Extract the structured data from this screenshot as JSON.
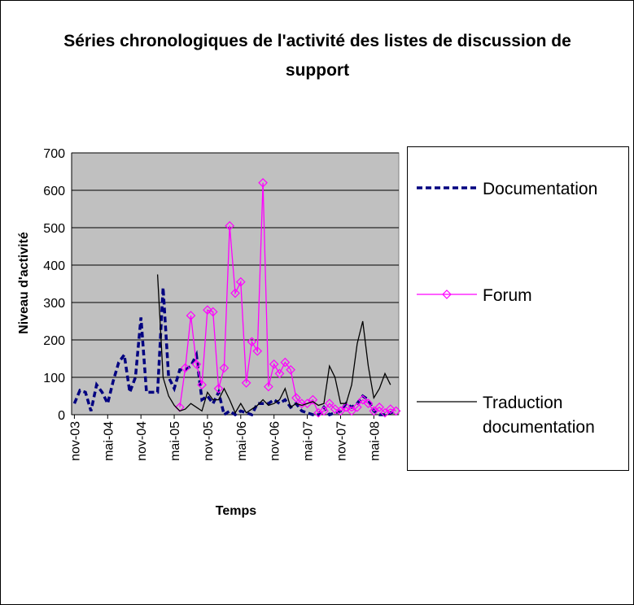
{
  "chart_data": {
    "type": "line",
    "title": "Séries chronologiques de l'activité des listes de discussion de support",
    "x_label": "Temps",
    "y_label": "Niveau d'activité",
    "categories": [
      "nov-03",
      null,
      null,
      null,
      null,
      null,
      "mai-04",
      null,
      null,
      null,
      null,
      null,
      "nov-04",
      null,
      null,
      null,
      null,
      null,
      "mai-05",
      null,
      null,
      null,
      null,
      null,
      "nov-05",
      null,
      null,
      null,
      null,
      null,
      "mai-06",
      null,
      null,
      null,
      null,
      null,
      "nov-06",
      null,
      null,
      null,
      null,
      null,
      "mai-07",
      null,
      null,
      null,
      null,
      null,
      "nov-07",
      null,
      null,
      null,
      null,
      null,
      "mai-08",
      null,
      null,
      null,
      null
    ],
    "series": [
      {
        "name": "Documentation",
        "color": "#000080",
        "dash": true,
        "values": [
          30,
          65,
          60,
          10,
          80,
          60,
          30,
          90,
          140,
          160,
          60,
          100,
          260,
          60,
          60,
          60,
          340,
          100,
          70,
          120,
          120,
          130,
          160,
          40,
          50,
          30,
          60,
          0,
          10,
          0,
          10,
          5,
          0,
          30,
          30,
          30,
          40,
          30,
          40,
          20,
          30,
          10,
          5,
          0,
          0,
          20,
          0,
          5,
          10,
          30,
          20,
          30,
          50,
          40,
          10,
          0,
          0,
          5,
          10
        ]
      },
      {
        "name": "Forum",
        "color": "#ff00ff",
        "marker": "diamond",
        "values": [
          null,
          null,
          null,
          null,
          null,
          null,
          null,
          null,
          null,
          null,
          null,
          null,
          null,
          null,
          null,
          null,
          null,
          null,
          null,
          20,
          125,
          265,
          135,
          80,
          280,
          275,
          70,
          125,
          505,
          325,
          355,
          85,
          195,
          170,
          620,
          75,
          135,
          110,
          140,
          120,
          45,
          30,
          30,
          40,
          5,
          10,
          30,
          15,
          10,
          20,
          10,
          20,
          40,
          30,
          10,
          20,
          5,
          15,
          10
        ]
      },
      {
        "name": "Traduction documentation",
        "color": "#000000",
        "values": [
          null,
          null,
          null,
          null,
          null,
          null,
          null,
          null,
          null,
          null,
          null,
          null,
          null,
          null,
          null,
          375,
          100,
          50,
          25,
          10,
          15,
          30,
          20,
          10,
          60,
          40,
          40,
          70,
          40,
          5,
          30,
          5,
          15,
          25,
          40,
          25,
          30,
          40,
          70,
          20,
          30,
          25,
          30,
          35,
          25,
          30,
          130,
          100,
          30,
          30,
          80,
          190,
          250,
          130,
          45,
          70,
          110,
          80,
          null
        ]
      }
    ],
    "ylim": [
      0,
      700
    ],
    "yticks": [
      0,
      100,
      200,
      300,
      400,
      500,
      600,
      700
    ],
    "grid": true,
    "legend": "right"
  }
}
